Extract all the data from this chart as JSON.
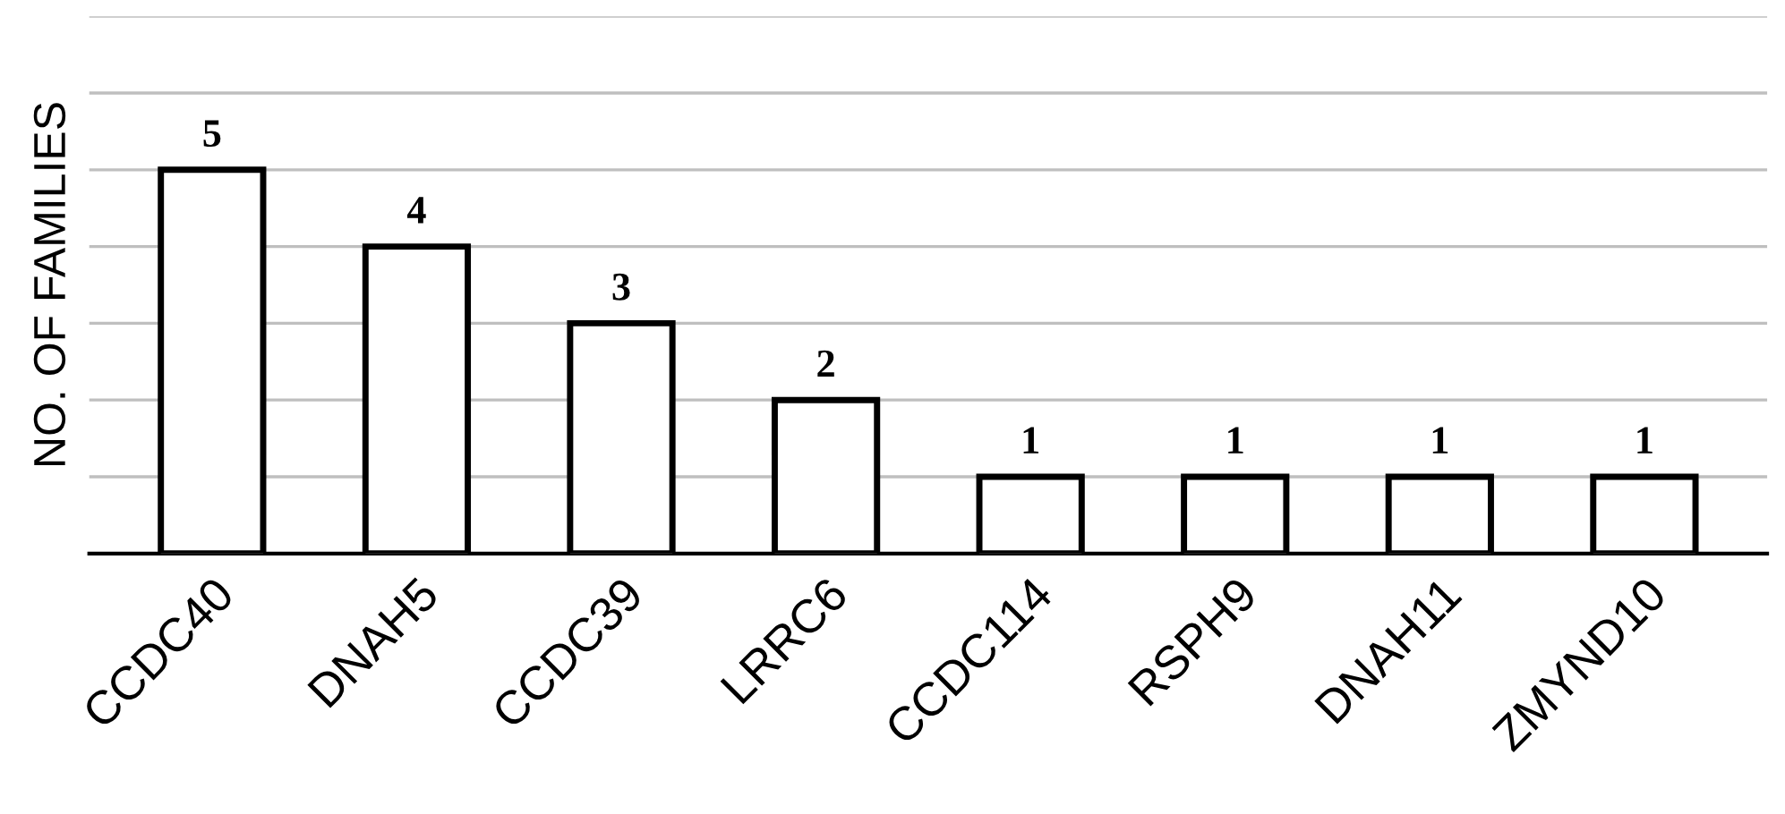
{
  "chart_data": {
    "type": "bar",
    "ylabel": "NO. OF FAMILIES",
    "categories": [
      "CCDC40",
      "DNAH5",
      "CCDC39",
      "LRRC6",
      "CCDC114",
      "RSPH9",
      "DNAH11",
      "ZMYND10"
    ],
    "values": [
      5,
      4,
      3,
      2,
      1,
      1,
      1,
      1
    ],
    "color": "#ffffff",
    "ylim": [
      0,
      7
    ],
    "yticks": [
      {
        "value": 0,
        "label": null
      },
      {
        "value": 1,
        "label": null
      },
      {
        "value": 2,
        "label": null
      },
      {
        "value": 3,
        "label": null
      },
      {
        "value": 4,
        "label": null
      },
      {
        "value": 5,
        "label": null
      },
      {
        "value": 6,
        "label": null
      },
      {
        "value": 7,
        "label": null
      }
    ],
    "tick_labels": "x",
    "grid": "y",
    "data_labels": true
  }
}
